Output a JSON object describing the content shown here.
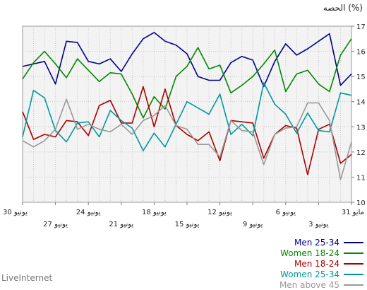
{
  "chart_data": {
    "type": "line",
    "ylabel": "الحصه (%)",
    "ylim": [
      10,
      17
    ],
    "yticks": [
      "10",
      "11",
      "12",
      "13",
      "14",
      "15",
      "16",
      "17"
    ],
    "grid": true,
    "legend_position": "bottom-right",
    "x_tick_labels": [
      {
        "label": "30 يونيو",
        "index": 0,
        "row": 1
      },
      {
        "label": "27 يونيو",
        "index": 3,
        "row": 2
      },
      {
        "label": "24 يونيو",
        "index": 6,
        "row": 1
      },
      {
        "label": "21 يونيو",
        "index": 9,
        "row": 2
      },
      {
        "label": "18 يونيو",
        "index": 12,
        "row": 1
      },
      {
        "label": "15 يونيو",
        "index": 15,
        "row": 2
      },
      {
        "label": "12 يونيو",
        "index": 18,
        "row": 1
      },
      {
        "label": "9 يونيو",
        "index": 21,
        "row": 2
      },
      {
        "label": "6 يونيو",
        "index": 24,
        "row": 1
      },
      {
        "label": "3 يونيو",
        "index": 27,
        "row": 2
      },
      {
        "label": "31 مايو",
        "index": 30,
        "row": 1
      }
    ],
    "series": [
      {
        "name": "Men 25-34",
        "color": "#00008b",
        "values": [
          15.4,
          15.5,
          15.6,
          14.7,
          16.4,
          16.35,
          15.6,
          15.5,
          15.7,
          15.2,
          15.9,
          16.5,
          16.75,
          16.4,
          16.25,
          15.9,
          15.0,
          14.85,
          14.85,
          15.55,
          15.8,
          15.65,
          14.6,
          15.6,
          16.3,
          15.85,
          16.1,
          16.4,
          16.7,
          14.65,
          15.1
        ]
      },
      {
        "name": "Women 18-24",
        "color": "#008800",
        "values": [
          14.9,
          15.55,
          16.0,
          15.5,
          14.95,
          15.7,
          15.25,
          14.8,
          15.15,
          15.1,
          14.3,
          13.35,
          14.2,
          13.7,
          15.0,
          15.4,
          16.15,
          15.3,
          15.45,
          14.35,
          14.65,
          15.0,
          15.5,
          16.05,
          14.4,
          15.1,
          15.25,
          14.7,
          14.4,
          15.85,
          16.5
        ]
      },
      {
        "name": "Men 18-24",
        "color": "#aa0000",
        "values": [
          13.6,
          12.5,
          12.7,
          12.6,
          13.25,
          13.2,
          12.65,
          13.85,
          14.05,
          13.15,
          13.15,
          14.6,
          13.0,
          14.5,
          13.05,
          12.7,
          12.45,
          12.8,
          11.65,
          13.25,
          13.2,
          13.15,
          11.75,
          12.7,
          13.05,
          12.95,
          11.1,
          12.9,
          13.1,
          11.55,
          11.9
        ]
      },
      {
        "name": "Women 25-34",
        "color": "#009999",
        "values": [
          12.6,
          14.45,
          14.15,
          12.85,
          12.4,
          13.15,
          13.2,
          12.6,
          13.65,
          13.25,
          12.95,
          12.05,
          12.75,
          12.2,
          13.1,
          14.0,
          13.75,
          13.5,
          14.3,
          12.7,
          13.1,
          12.65,
          14.75,
          13.9,
          13.5,
          12.75,
          13.55,
          12.85,
          12.8,
          14.35,
          14.25
        ]
      },
      {
        "name": "Men above 45",
        "color": "#999999",
        "values": [
          12.45,
          12.2,
          12.45,
          12.9,
          14.1,
          12.9,
          13.1,
          12.9,
          12.8,
          13.1,
          12.7,
          13.25,
          13.45,
          13.85,
          13.05,
          12.9,
          12.3,
          12.3,
          11.8,
          13.25,
          12.85,
          12.8,
          11.5,
          12.7,
          12.95,
          13.0,
          13.95,
          13.95,
          13.25,
          10.9,
          12.4
        ]
      }
    ]
  },
  "legend": {
    "items": [
      {
        "label": "Men 25-34",
        "color": "#00008b"
      },
      {
        "label": "Women 18-24",
        "color": "#008800"
      },
      {
        "label": "Men 18-24",
        "color": "#aa0000"
      },
      {
        "label": "Women 25-34",
        "color": "#009999"
      },
      {
        "label": "Men above 45",
        "color": "#999999"
      }
    ]
  },
  "footer": {
    "brand": "LiveInternet"
  }
}
